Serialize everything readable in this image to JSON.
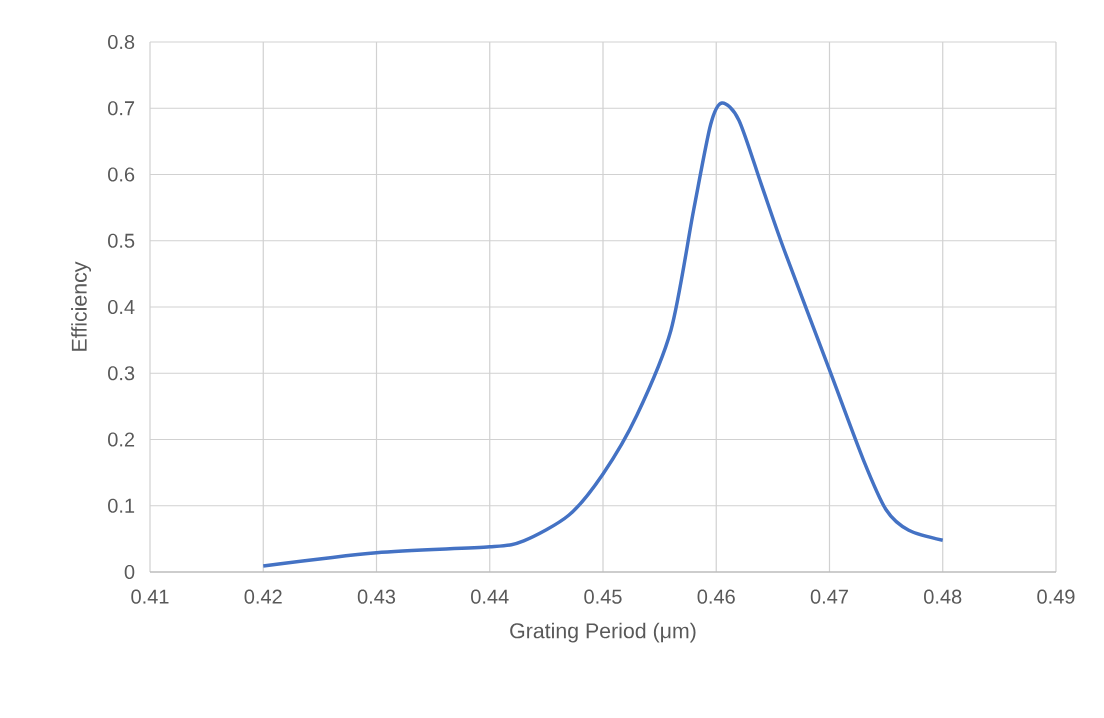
{
  "chart_data": {
    "type": "line",
    "xlabel": "Grating Period (μm)",
    "ylabel": "Efficiency",
    "x": [
      0.42,
      0.43,
      0.44,
      0.443,
      0.447,
      0.45,
      0.453,
      0.456,
      0.458,
      0.4595,
      0.4605,
      0.462,
      0.464,
      0.466,
      0.47,
      0.473,
      0.475,
      0.477,
      0.48
    ],
    "values": [
      0.009,
      0.029,
      0.038,
      0.047,
      0.086,
      0.148,
      0.237,
      0.365,
      0.546,
      0.675,
      0.708,
      0.682,
      0.584,
      0.486,
      0.305,
      0.169,
      0.094,
      0.063,
      0.048
    ],
    "color": "#4472c4",
    "xlim": [
      0.41,
      0.49
    ],
    "ylim": [
      0,
      0.8
    ],
    "xticks": [
      0.41,
      0.42,
      0.43,
      0.44,
      0.45,
      0.46,
      0.47,
      0.48,
      0.49
    ],
    "yticks": [
      0,
      0.1,
      0.2,
      0.3,
      0.4,
      0.5,
      0.6,
      0.7,
      0.8
    ],
    "grid": true,
    "marker": "none",
    "line_style": "solid"
  }
}
